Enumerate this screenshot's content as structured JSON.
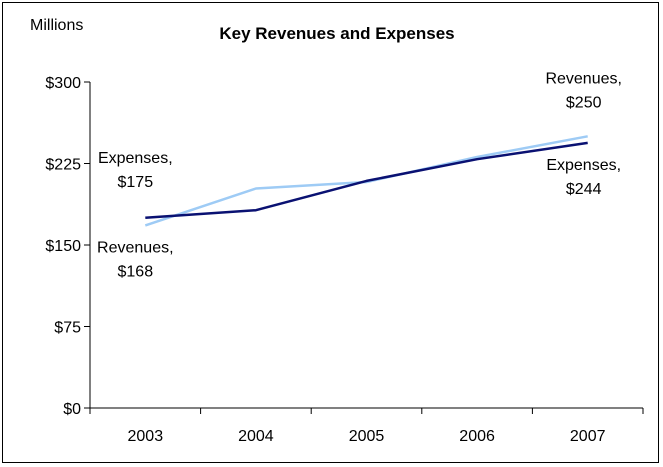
{
  "chart_data": {
    "type": "line",
    "title": "Key Revenues and Expenses",
    "units_label": "Millions",
    "xlabel": "",
    "ylabel": "",
    "categories": [
      "2003",
      "2004",
      "2005",
      "2006",
      "2007"
    ],
    "ylim": [
      0,
      300
    ],
    "yticks": [
      0,
      75,
      150,
      225,
      300
    ],
    "ytick_labels": [
      "$0",
      "$75",
      "$150",
      "$225",
      "$300"
    ],
    "grid": false,
    "series": [
      {
        "name": "Revenues",
        "values": [
          168,
          202,
          208,
          231,
          250
        ],
        "color": "#9ecbf5"
      },
      {
        "name": "Expenses",
        "values": [
          175,
          182,
          209,
          229,
          244
        ],
        "color": "#0a1172"
      }
    ],
    "annotations": [
      {
        "line1": "Expenses,",
        "line2": "$175",
        "series": "Expenses",
        "point": "2003"
      },
      {
        "line1": "Revenues,",
        "line2": "$168",
        "series": "Revenues",
        "point": "2003"
      },
      {
        "line1": "Revenues,",
        "line2": "$250",
        "series": "Revenues",
        "point": "2007"
      },
      {
        "line1": "Expenses,",
        "line2": "$244",
        "series": "Expenses",
        "point": "2007"
      }
    ]
  }
}
